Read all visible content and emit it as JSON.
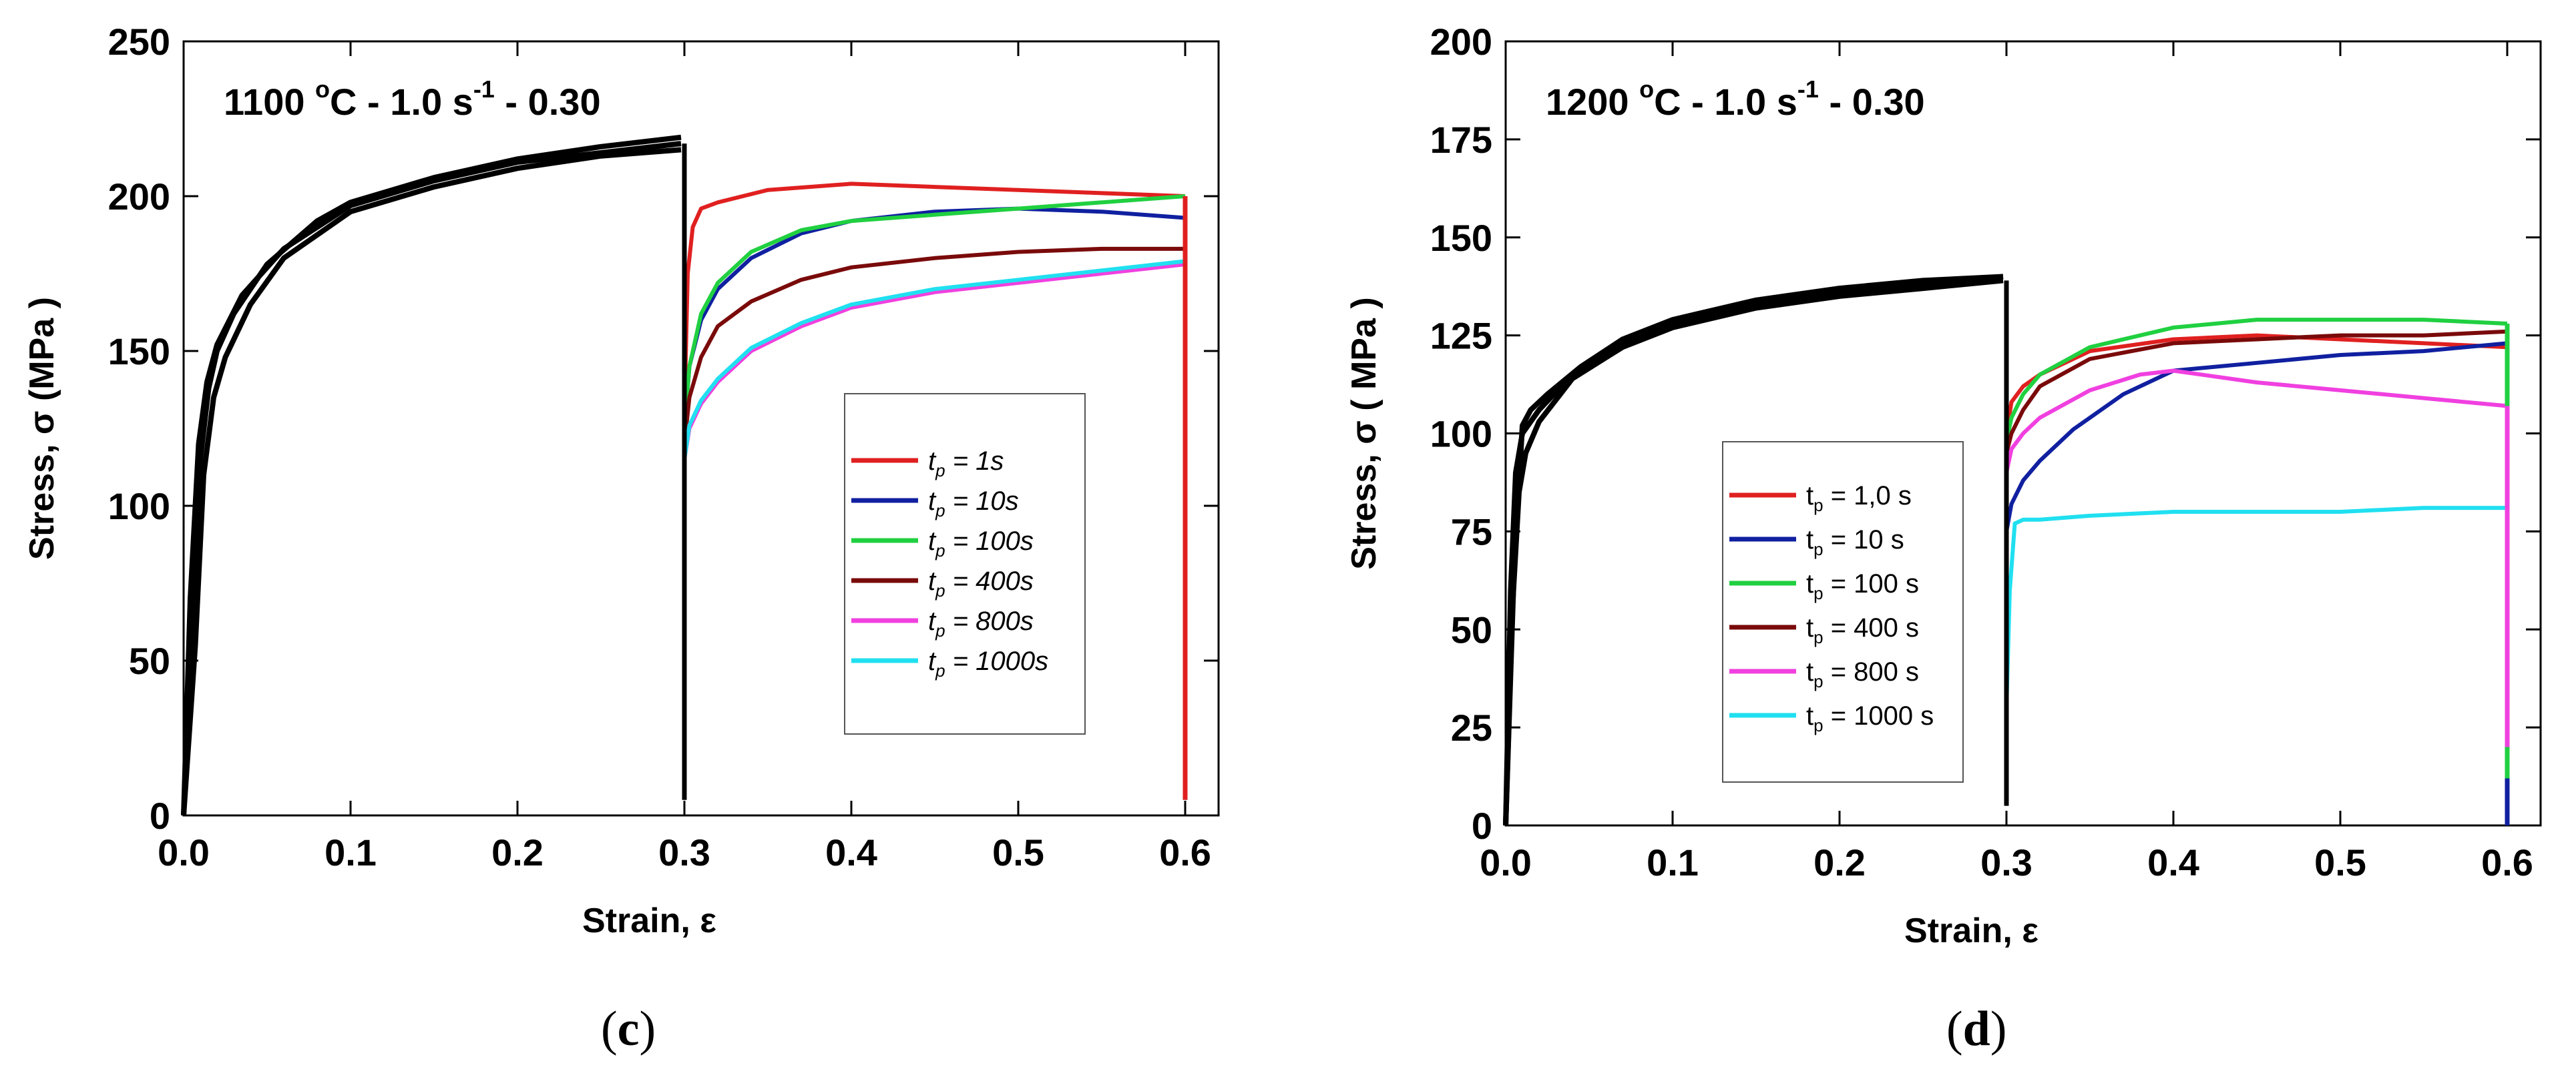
{
  "captions": {
    "c": "c",
    "d": "d"
  },
  "colors": {
    "red": "#e02020",
    "blue": "#1020a0",
    "green": "#20d040",
    "darkred": "#7a0a0a",
    "magenta": "#f040e0",
    "cyan": "#20e0f0",
    "prestrain": "#000000"
  },
  "chart_data": [
    {
      "id": "c",
      "type": "line",
      "title_parts": {
        "temp": "1100 ",
        "deg": "o",
        "unit": "C - 1.0 s",
        "exp": "-1",
        "tail": " - 0.30"
      },
      "xlabel": "Strain, ε",
      "ylabel": "Stress, σ (MPa )",
      "xlim": [
        0,
        0.62
      ],
      "ylim": [
        0,
        250
      ],
      "xticks": [
        "0.0",
        "0.1",
        "0.2",
        "0.3",
        "0.4",
        "0.5",
        "0.6"
      ],
      "xtick_values": [
        0,
        0.1,
        0.2,
        0.3,
        0.4,
        0.5,
        0.6
      ],
      "yticks": [
        "0",
        "50",
        "100",
        "150",
        "200",
        "250"
      ],
      "ytick_values": [
        0,
        50,
        100,
        150,
        200,
        250
      ],
      "legend_style": "italic",
      "legend": [
        {
          "sym": "t",
          "sub": "p",
          "text": " = 1s",
          "color": "red"
        },
        {
          "sym": "t",
          "sub": "p",
          "text": " = 10s",
          "color": "blue"
        },
        {
          "sym": "t",
          "sub": "p",
          "text": " = 100s",
          "color": "green"
        },
        {
          "sym": "t",
          "sub": "p",
          "text": " = 400s",
          "color": "darkred"
        },
        {
          "sym": "t",
          "sub": "p",
          "text": " = 800s",
          "color": "magenta"
        },
        {
          "sym": "t",
          "sub": "p",
          "text": " = 1000s",
          "color": "cyan"
        }
      ],
      "prestrain_series": [
        {
          "name": "first pass A",
          "x": [
            0,
            0.005,
            0.01,
            0.015,
            0.02,
            0.03,
            0.05,
            0.08,
            0.1,
            0.15,
            0.2,
            0.25,
            0.298
          ],
          "y": [
            0,
            60,
            115,
            138,
            150,
            162,
            178,
            192,
            198,
            206,
            212,
            216,
            219
          ]
        },
        {
          "name": "first pass B",
          "x": [
            0,
            0.007,
            0.012,
            0.018,
            0.025,
            0.04,
            0.06,
            0.1,
            0.15,
            0.2,
            0.25,
            0.298
          ],
          "y": [
            0,
            55,
            110,
            135,
            148,
            165,
            180,
            195,
            203,
            209,
            213,
            215
          ]
        },
        {
          "name": "first pass C",
          "x": [
            0,
            0.004,
            0.009,
            0.014,
            0.02,
            0.035,
            0.06,
            0.1,
            0.15,
            0.2,
            0.25,
            0.298
          ],
          "y": [
            0,
            70,
            120,
            140,
            152,
            168,
            183,
            197,
            205,
            211,
            214,
            217
          ]
        }
      ],
      "series": [
        {
          "name": "tp = 1s",
          "color": "red",
          "x": [
            0.3,
            0.302,
            0.305,
            0.31,
            0.32,
            0.35,
            0.4,
            0.45,
            0.5,
            0.55,
            0.6
          ],
          "y": [
            130,
            175,
            190,
            196,
            198,
            202,
            204,
            203,
            202,
            201,
            200
          ]
        },
        {
          "name": "tp = 10s",
          "color": "blue",
          "x": [
            0.3,
            0.303,
            0.31,
            0.32,
            0.34,
            0.37,
            0.4,
            0.45,
            0.5,
            0.55,
            0.6
          ],
          "y": [
            125,
            145,
            160,
            170,
            180,
            188,
            192,
            195,
            196,
            195,
            193
          ]
        },
        {
          "name": "tp = 100s",
          "color": "green",
          "x": [
            0.3,
            0.303,
            0.31,
            0.32,
            0.34,
            0.37,
            0.4,
            0.45,
            0.5,
            0.55,
            0.6
          ],
          "y": [
            125,
            145,
            162,
            172,
            182,
            189,
            192,
            194,
            196,
            198,
            200
          ]
        },
        {
          "name": "tp = 400s",
          "color": "darkred",
          "x": [
            0.3,
            0.303,
            0.31,
            0.32,
            0.34,
            0.37,
            0.4,
            0.45,
            0.5,
            0.55,
            0.6
          ],
          "y": [
            120,
            135,
            148,
            158,
            166,
            173,
            177,
            180,
            182,
            183,
            183
          ]
        },
        {
          "name": "tp = 800s",
          "color": "magenta",
          "x": [
            0.3,
            0.303,
            0.31,
            0.32,
            0.34,
            0.37,
            0.4,
            0.45,
            0.5,
            0.55,
            0.6
          ],
          "y": [
            115,
            125,
            133,
            140,
            150,
            158,
            164,
            169,
            172,
            175,
            178
          ]
        },
        {
          "name": "tp = 1000s",
          "color": "cyan",
          "x": [
            0.3,
            0.303,
            0.31,
            0.32,
            0.34,
            0.37,
            0.4,
            0.45,
            0.5,
            0.55,
            0.6
          ],
          "y": [
            115,
            126,
            134,
            141,
            151,
            159,
            165,
            170,
            173,
            176,
            179
          ]
        }
      ],
      "unload_series": [
        {
          "name": "drop at 0.3",
          "color": "prestrain",
          "x": [
            0.3,
            0.3
          ],
          "y": [
            217,
            5
          ]
        },
        {
          "name": "drop at 0.6",
          "color": "cyan",
          "x": [
            0.6,
            0.6
          ],
          "y": [
            200,
            5
          ]
        },
        {
          "name": "drop at 0.6 red",
          "color": "red",
          "x": [
            0.6,
            0.6
          ],
          "y": [
            200,
            5
          ]
        }
      ]
    },
    {
      "id": "d",
      "type": "line",
      "title_parts": {
        "temp": "1200 ",
        "deg": "o",
        "unit": "C - 1.0 s",
        "exp": "-1",
        "tail": " - 0.30"
      },
      "xlabel": "Strain, ε",
      "ylabel": "Stress, σ ( MPa )",
      "xlim": [
        0,
        0.62
      ],
      "ylim": [
        0,
        200
      ],
      "xticks": [
        "0.0",
        "0.1",
        "0.2",
        "0.3",
        "0.4",
        "0.5",
        "0.6"
      ],
      "xtick_values": [
        0,
        0.1,
        0.2,
        0.3,
        0.4,
        0.5,
        0.6
      ],
      "yticks": [
        "0",
        "25",
        "50",
        "75",
        "100",
        "125",
        "150",
        "175",
        "200"
      ],
      "ytick_values": [
        0,
        25,
        50,
        75,
        100,
        125,
        150,
        175,
        200
      ],
      "legend_style": "normal",
      "legend": [
        {
          "sym": "t",
          "sub": "p",
          "text": " = 1,0 s",
          "color": "red"
        },
        {
          "sym": "t",
          "sub": "p",
          "text": " = 10 s",
          "color": "blue"
        },
        {
          "sym": "t",
          "sub": "p",
          "text": " = 100 s",
          "color": "green"
        },
        {
          "sym": "t",
          "sub": "p",
          "text": " = 400 s",
          "color": "darkred"
        },
        {
          "sym": "t",
          "sub": "p",
          "text": " = 800 s",
          "color": "magenta"
        },
        {
          "sym": "t",
          "sub": "p",
          "text": " = 1000 s",
          "color": "cyan"
        }
      ],
      "prestrain_series": [
        {
          "name": "first pass A",
          "x": [
            0,
            0.003,
            0.006,
            0.01,
            0.02,
            0.04,
            0.07,
            0.1,
            0.15,
            0.2,
            0.25,
            0.298
          ],
          "y": [
            0,
            60,
            90,
            100,
            106,
            115,
            123,
            128,
            133,
            136,
            138,
            140
          ]
        },
        {
          "name": "first pass B",
          "x": [
            0,
            0.004,
            0.008,
            0.012,
            0.02,
            0.04,
            0.07,
            0.1,
            0.15,
            0.2,
            0.25,
            0.298
          ],
          "y": [
            0,
            55,
            85,
            95,
            103,
            114,
            122,
            127,
            132,
            135,
            137,
            139
          ]
        },
        {
          "name": "first pass C",
          "x": [
            0,
            0.005,
            0.01,
            0.015,
            0.025,
            0.045,
            0.07,
            0.1,
            0.15,
            0.2,
            0.25,
            0.298
          ],
          "y": [
            0,
            65,
            102,
            106,
            110,
            117,
            124,
            129,
            134,
            137,
            139,
            140
          ]
        }
      ],
      "series": [
        {
          "name": "tp = 1,0 s",
          "color": "red",
          "x": [
            0.3,
            0.303,
            0.31,
            0.32,
            0.35,
            0.4,
            0.45,
            0.5,
            0.55,
            0.6
          ],
          "y": [
            100,
            108,
            112,
            115,
            121,
            124,
            125,
            124,
            123,
            122
          ]
        },
        {
          "name": "tp = 10 s",
          "color": "blue",
          "x": [
            0.3,
            0.303,
            0.31,
            0.32,
            0.34,
            0.37,
            0.4,
            0.45,
            0.5,
            0.55,
            0.6
          ],
          "y": [
            75,
            82,
            88,
            93,
            101,
            110,
            116,
            118,
            120,
            121,
            123
          ]
        },
        {
          "name": "tp = 100 s",
          "color": "green",
          "x": [
            0.3,
            0.303,
            0.31,
            0.32,
            0.35,
            0.4,
            0.45,
            0.5,
            0.55,
            0.6
          ],
          "y": [
            98,
            104,
            110,
            115,
            122,
            127,
            129,
            129,
            129,
            128
          ]
        },
        {
          "name": "tp = 400 s",
          "color": "darkred",
          "x": [
            0.3,
            0.303,
            0.31,
            0.32,
            0.35,
            0.4,
            0.45,
            0.5,
            0.55,
            0.6
          ],
          "y": [
            95,
            100,
            106,
            112,
            119,
            123,
            124,
            125,
            125,
            126
          ]
        },
        {
          "name": "tp = 800 s",
          "color": "magenta",
          "x": [
            0.3,
            0.303,
            0.31,
            0.32,
            0.35,
            0.38,
            0.4,
            0.45,
            0.5,
            0.55,
            0.6
          ],
          "y": [
            90,
            96,
            100,
            104,
            111,
            115,
            116,
            113,
            111,
            109,
            107
          ]
        },
        {
          "name": "tp = 1000 s",
          "color": "cyan",
          "x": [
            0.3,
            0.302,
            0.305,
            0.31,
            0.32,
            0.35,
            0.4,
            0.45,
            0.5,
            0.55,
            0.6
          ],
          "y": [
            30,
            60,
            77,
            78,
            78,
            79,
            80,
            80,
            80,
            81,
            81
          ]
        }
      ],
      "unload_series": [
        {
          "name": "drop at 0.3",
          "color": "prestrain",
          "x": [
            0.3,
            0.3
          ],
          "y": [
            139,
            5
          ]
        },
        {
          "name": "drop at 0.6 green",
          "color": "green",
          "x": [
            0.6,
            0.6
          ],
          "y": [
            128,
            8
          ]
        },
        {
          "name": "drop at 0.6 magenta",
          "color": "magenta",
          "x": [
            0.6,
            0.6
          ],
          "y": [
            107,
            20
          ]
        },
        {
          "name": "drop at 0.6 blue",
          "color": "blue",
          "x": [
            0.6,
            0.6
          ],
          "y": [
            12,
            0
          ]
        }
      ]
    }
  ]
}
